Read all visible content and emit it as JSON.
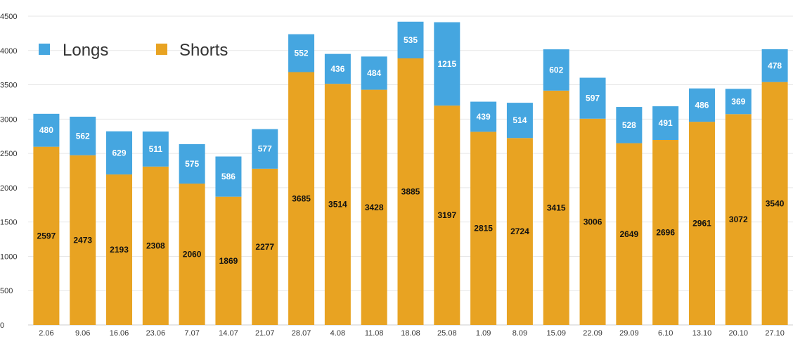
{
  "chart_data": {
    "type": "bar",
    "stacked": true,
    "title": "",
    "xlabel": "",
    "ylabel": "",
    "ylim": [
      0,
      4500
    ],
    "yticks": [
      0,
      500,
      1000,
      1500,
      2000,
      2500,
      3000,
      3500,
      4000,
      4500
    ],
    "grid": true,
    "legend_position": "top-left",
    "categories": [
      "2.06",
      "9.06",
      "16.06",
      "23.06",
      "7.07",
      "14.07",
      "21.07",
      "28.07",
      "4.08",
      "11.08",
      "18.08",
      "25.08",
      "1.09",
      "8.09",
      "15.09",
      "22.09",
      "29.09",
      "6.10",
      "13.10",
      "20.10",
      "27.10"
    ],
    "series": [
      {
        "name": "Shorts",
        "color": "#E8A322",
        "values": [
          2597,
          2473,
          2193,
          2308,
          2060,
          1869,
          2277,
          3685,
          3514,
          3428,
          3885,
          3197,
          2815,
          2724,
          3415,
          3006,
          2649,
          2696,
          2961,
          3072,
          3540
        ]
      },
      {
        "name": "Longs",
        "color": "#45A6E0",
        "values": [
          480,
          562,
          629,
          511,
          575,
          586,
          577,
          552,
          436,
          484,
          535,
          1215,
          439,
          514,
          602,
          597,
          528,
          491,
          486,
          369,
          478
        ]
      }
    ]
  },
  "legend": {
    "longs": {
      "label": "Longs",
      "color": "#45A6E0"
    },
    "shorts": {
      "label": "Shorts",
      "color": "#E8A322"
    }
  }
}
